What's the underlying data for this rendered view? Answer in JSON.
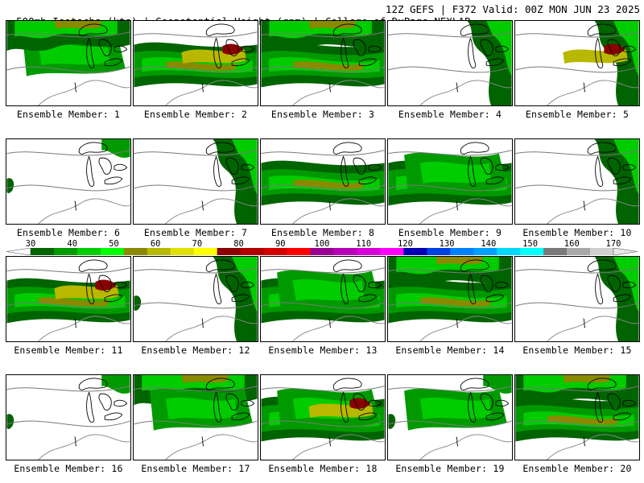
{
  "header": {
    "left": "500mb Isotachs (kts) | Geopotential Height (gpm) | College of DuPage NEXLAB",
    "right": "12Z GEFS | F372 Valid: 00Z MON JUN 23 2025"
  },
  "colorbar": {
    "ticks": [
      "30",
      "40",
      "50",
      "60",
      "70",
      "80",
      "90",
      "100",
      "110",
      "120",
      "130",
      "140",
      "150",
      "160",
      "170"
    ],
    "colors": [
      "#006400",
      "#009a00",
      "#00cc00",
      "#00ff00",
      "#8a8a00",
      "#b8b800",
      "#e0e000",
      "#ffff00",
      "#8b0000",
      "#b00000",
      "#d40000",
      "#ff0000",
      "#9a0090",
      "#b800b8",
      "#d800d8",
      "#ff00ff",
      "#0000b0",
      "#0040e0",
      "#0080ff",
      "#00a0ff",
      "#00d8ff",
      "#00ffff",
      "#7a7a7a",
      "#a8a8a8",
      "#d0d0d0"
    ]
  },
  "panels": [
    {
      "label": "Ensemble Member: 1",
      "wind": [
        "mid",
        "north"
      ]
    },
    {
      "label": "Ensemble Member: 2",
      "wind": [
        "band",
        "strong"
      ]
    },
    {
      "label": "Ensemble Member: 3",
      "wind": [
        "north",
        "band"
      ]
    },
    {
      "label": "Ensemble Member: 4",
      "wind": [
        "east"
      ]
    },
    {
      "label": "Ensemble Member: 5",
      "wind": [
        "east",
        "strong"
      ]
    },
    {
      "label": "Ensemble Member: 6",
      "wind": [
        "light"
      ]
    },
    {
      "label": "Ensemble Member: 7",
      "wind": [
        "east"
      ]
    },
    {
      "label": "Ensemble Member: 8",
      "wind": [
        "band"
      ]
    },
    {
      "label": "Ensemble Member: 9",
      "wind": [
        "band",
        "mid"
      ]
    },
    {
      "label": "Ensemble Member: 10",
      "wind": [
        "east"
      ]
    },
    {
      "label": "Ensemble Member: 11",
      "wind": [
        "band",
        "strong"
      ]
    },
    {
      "label": "Ensemble Member: 12",
      "wind": [
        "light",
        "east"
      ]
    },
    {
      "label": "Ensemble Member: 13",
      "wind": [
        "band",
        "mid"
      ]
    },
    {
      "label": "Ensemble Member: 14",
      "wind": [
        "north",
        "band"
      ]
    },
    {
      "label": "Ensemble Member: 15",
      "wind": [
        "east"
      ]
    },
    {
      "label": "Ensemble Member: 16",
      "wind": [
        "light"
      ]
    },
    {
      "label": "Ensemble Member: 17",
      "wind": [
        "north",
        "mid"
      ]
    },
    {
      "label": "Ensemble Member: 18",
      "wind": [
        "band",
        "mid",
        "strong"
      ]
    },
    {
      "label": "Ensemble Member: 19",
      "wind": [
        "light",
        "mid"
      ]
    },
    {
      "label": "Ensemble Member: 20",
      "wind": [
        "north",
        "band"
      ]
    }
  ]
}
